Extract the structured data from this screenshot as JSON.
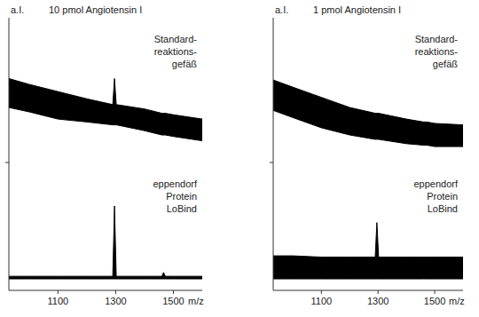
{
  "chart_data": [
    {
      "type": "area",
      "subtitle": "10 pmol Angiotensin I",
      "y_label": "a.I.",
      "title": "Standard-\nreaktions-\ngefäß",
      "x": [
        930,
        1000,
        1100,
        1200,
        1290,
        1296,
        1302,
        1400,
        1460,
        1466,
        1472,
        1500,
        1600
      ],
      "series": [
        {
          "color": "#000000",
          "values": [
            58,
            54,
            49,
            44,
            40,
            58,
            40,
            37,
            34,
            34,
            34,
            33,
            30
          ]
        },
        {
          "color": "#000000",
          "values": [
            38,
            35,
            30,
            28,
            26,
            26,
            26,
            22,
            19,
            19,
            19,
            18,
            15
          ]
        }
      ],
      "xlim": [
        930,
        1600
      ],
      "ylim": [
        0,
        100
      ],
      "tick_labels": false
    },
    {
      "type": "area",
      "subtitle": "1 pmol Angiotensin I",
      "y_label": "a.I.",
      "title": "Standard-\nreaktions-\ngefäß",
      "x": [
        930,
        1000,
        1100,
        1200,
        1290,
        1296,
        1302,
        1400,
        1460,
        1466,
        1472,
        1500,
        1600
      ],
      "series": [
        {
          "color": "#000000",
          "values": [
            57,
            52,
            45,
            38,
            34,
            34,
            34,
            30,
            28,
            28,
            28,
            27,
            26
          ]
        },
        {
          "color": "#000000",
          "values": [
            36,
            31,
            24,
            19,
            16,
            16,
            16,
            13,
            12,
            12,
            12,
            11,
            11
          ]
        }
      ],
      "xlim": [
        930,
        1600
      ],
      "ylim": [
        0,
        100
      ],
      "tick_labels": false
    },
    {
      "type": "area",
      "title": "eppendorf\nProtein\nLoBind",
      "x_label": "m/z",
      "x": [
        930,
        1000,
        1100,
        1200,
        1290,
        1296,
        1302,
        1400,
        1460,
        1466,
        1472,
        1500,
        1600
      ],
      "series": [
        {
          "color": "#000000",
          "values": [
            11,
            11,
            11,
            11,
            11,
            66,
            11,
            11,
            11,
            14,
            11,
            11,
            11
          ]
        },
        {
          "color": "#000000",
          "values": [
            9,
            9,
            9,
            9,
            9,
            9,
            9,
            9,
            9,
            9,
            9,
            9,
            9
          ]
        }
      ],
      "xlim": [
        930,
        1600
      ],
      "ylim": [
        0,
        100
      ],
      "xticks": [
        1100,
        1300,
        1500
      ],
      "tick_labels": "x"
    },
    {
      "type": "area",
      "title": "eppendorf\nProtein\nLoBind",
      "x_label": "m/z",
      "x": [
        930,
        1000,
        1100,
        1200,
        1290,
        1296,
        1302,
        1400,
        1460,
        1466,
        1472,
        1500,
        1600
      ],
      "series": [
        {
          "color": "#000000",
          "values": [
            27,
            27,
            26,
            26,
            26,
            53,
            26,
            26,
            26,
            26,
            26,
            26,
            26
          ]
        },
        {
          "color": "#000000",
          "values": [
            9,
            9,
            9,
            9,
            9,
            9,
            9,
            9,
            9,
            9,
            9,
            9,
            9
          ]
        }
      ],
      "xlim": [
        930,
        1600
      ],
      "ylim": [
        0,
        100
      ],
      "xticks": [
        1100,
        1300,
        1500
      ],
      "tick_labels": "x"
    }
  ]
}
